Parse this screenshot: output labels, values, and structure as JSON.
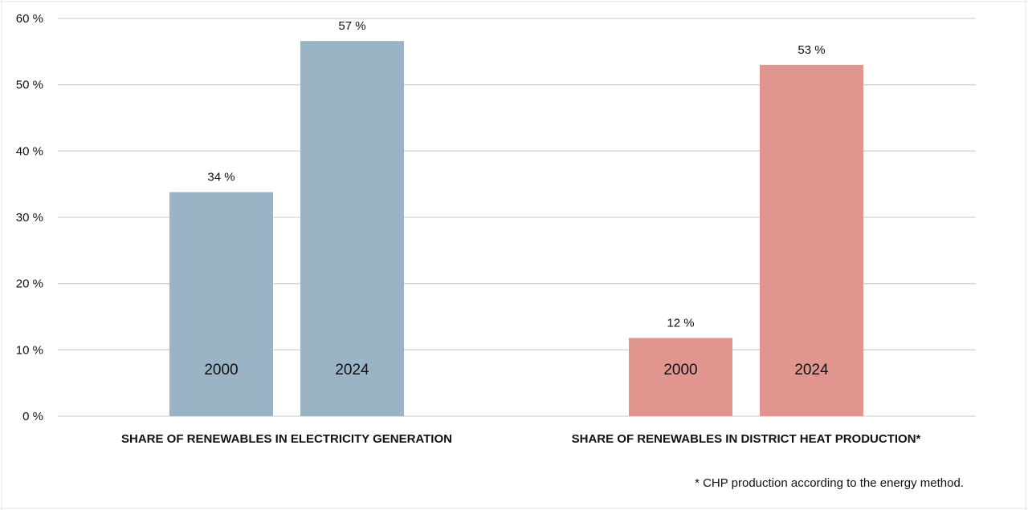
{
  "chart_data": {
    "type": "bar",
    "ylim": [
      0,
      60
    ],
    "y_ticks": [
      0,
      10,
      20,
      30,
      40,
      50,
      60
    ],
    "y_tick_labels": [
      "0 %",
      "10 %",
      "20 %",
      "30 %",
      "40 %",
      "50 %",
      "60 %"
    ],
    "grid": true,
    "groups": [
      {
        "label": "SHARE OF RENEWABLES IN ELECTRICITY GENERATION",
        "color": "#9ab4c6",
        "bars": [
          {
            "category": "2000",
            "value": 33.8,
            "data_label": "34 %"
          },
          {
            "category": "2024",
            "value": 56.6,
            "data_label": "57 %"
          }
        ]
      },
      {
        "label": "SHARE OF RENEWABLES IN DISTRICT HEAT PRODUCTION*",
        "color": "#e0968f",
        "bars": [
          {
            "category": "2000",
            "value": 11.8,
            "data_label": "12 %"
          },
          {
            "category": "2024",
            "value": 53.0,
            "data_label": "53 %"
          }
        ]
      }
    ],
    "footnote": "* CHP production according to the energy method."
  }
}
